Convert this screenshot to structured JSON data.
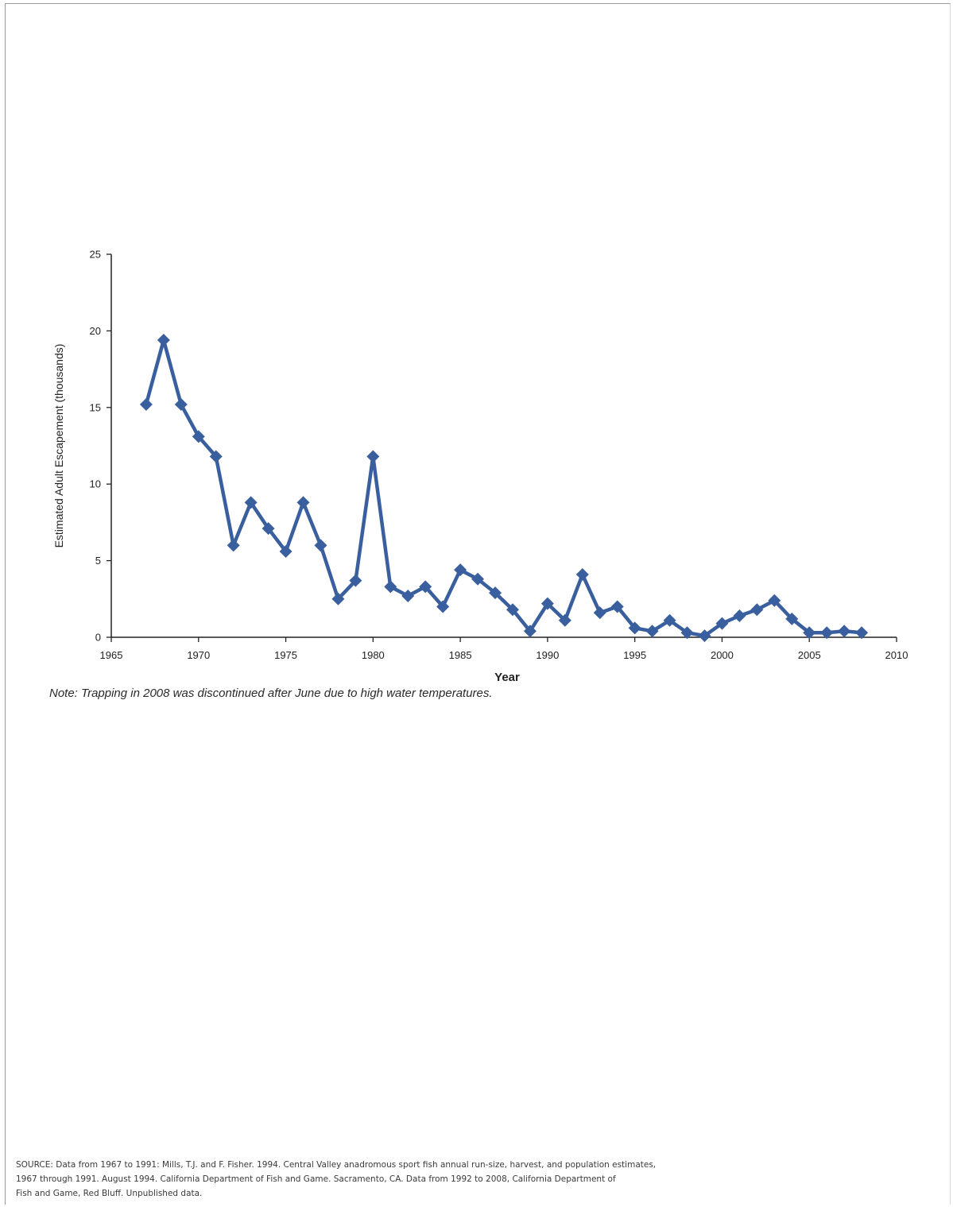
{
  "chart_data": {
    "type": "line",
    "title": "",
    "xlabel": "Year",
    "ylabel": "Estimated Adult Escapement (thousands)",
    "xlim": [
      1965,
      2010
    ],
    "ylim": [
      0,
      25
    ],
    "x_ticks": [
      1965,
      1970,
      1975,
      1980,
      1985,
      1990,
      1995,
      2000,
      2005,
      2010
    ],
    "y_ticks": [
      0,
      5,
      10,
      15,
      20,
      25
    ],
    "grid": false,
    "legend": "none",
    "marker": "diamond",
    "color": "#3a5f9e",
    "series": [
      {
        "x": [
          1967,
          1968,
          1969,
          1970,
          1971,
          1972,
          1973,
          1974,
          1975,
          1976,
          1977,
          1978,
          1979,
          1980,
          1981,
          1982,
          1983,
          1984,
          1985,
          1986,
          1987,
          1988,
          1989,
          1990,
          1991,
          1992,
          1993,
          1994,
          1995,
          1996,
          1997,
          1998,
          1999,
          2000,
          2001,
          2002,
          2003,
          2004,
          2005,
          2006,
          2007,
          2008
        ],
        "values": [
          15.2,
          19.4,
          15.2,
          13.1,
          11.8,
          6.0,
          8.8,
          7.1,
          5.6,
          8.8,
          6.0,
          2.5,
          3.7,
          11.8,
          3.3,
          2.7,
          3.3,
          2.0,
          4.4,
          3.8,
          2.9,
          1.8,
          0.4,
          2.2,
          1.1,
          4.1,
          1.6,
          2.0,
          0.6,
          0.4,
          1.1,
          0.3,
          0.1,
          0.9,
          1.4,
          1.8,
          2.4,
          1.2,
          0.3,
          0.3,
          0.4,
          0.3
        ]
      }
    ]
  },
  "note": "Note: Trapping in 2008 was discontinued after June due to high water temperatures.",
  "source": {
    "line1": "SOURCE: Data from 1967 to 1991: Mills, T.J. and F. Fisher.  1994. Central Valley anadromous sport fish annual run-size, harvest, and population estimates,",
    "line2": "1967 through 1991. August 1994.  California Department of Fish and Game. Sacramento, CA. Data from 1992 to 2008, California Department of",
    "line3": "Fish and Game, Red Bluff. Unpublished data."
  }
}
